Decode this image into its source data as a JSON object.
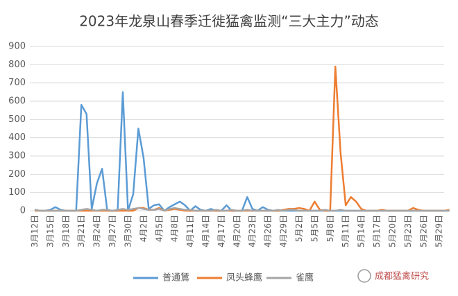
{
  "chart_data": {
    "type": "line",
    "title": "2023年龙泉山春季迁徙猛禽监测“三大主力”动态",
    "categories": [
      "3月12日",
      null,
      null,
      "3月15日",
      null,
      null,
      "3月18日",
      null,
      null,
      "3月21日",
      null,
      null,
      "3月24日",
      null,
      null,
      "3月27日",
      null,
      null,
      "3月30日",
      null,
      null,
      "4月2日",
      null,
      null,
      "4月5日",
      null,
      null,
      "4月8日",
      null,
      null,
      "4月11日",
      null,
      null,
      "4月14日",
      null,
      null,
      "4月17日",
      null,
      null,
      "4月20日",
      null,
      null,
      "4月23日",
      null,
      null,
      "4月26日",
      null,
      null,
      "4月29日",
      null,
      null,
      "5月2日",
      null,
      null,
      "5月5日",
      null,
      null,
      "5月8日",
      null,
      null,
      "5月11日",
      null,
      null,
      "5月14日",
      null,
      null,
      "5月17日",
      null,
      null,
      "5月20日",
      null,
      null,
      "5月23日",
      null,
      null,
      "5月26日",
      null,
      null,
      "5月29日",
      null,
      null
    ],
    "series": [
      {
        "name": "普通鵟",
        "color": "#5b9bd5",
        "values": [
          5,
          0,
          0,
          5,
          20,
          5,
          0,
          0,
          0,
          580,
          530,
          10,
          150,
          230,
          0,
          0,
          0,
          650,
          0,
          90,
          450,
          290,
          10,
          30,
          35,
          0,
          20,
          35,
          50,
          30,
          0,
          25,
          5,
          0,
          10,
          0,
          0,
          30,
          0,
          0,
          0,
          75,
          10,
          0,
          20,
          5,
          0,
          0,
          0,
          0,
          0,
          0,
          0,
          0,
          0,
          0,
          0,
          0,
          0,
          0,
          0,
          0,
          0,
          0,
          0,
          0,
          0,
          0,
          0,
          0,
          0,
          0,
          0,
          0,
          0,
          0,
          0,
          0,
          0,
          0,
          0
        ]
      },
      {
        "name": "凤头蜂鹰",
        "color": "#ed7d31",
        "values": [
          0,
          0,
          0,
          0,
          0,
          0,
          0,
          0,
          0,
          0,
          0,
          0,
          0,
          0,
          0,
          0,
          0,
          0,
          0,
          0,
          15,
          15,
          5,
          5,
          15,
          0,
          5,
          10,
          5,
          0,
          0,
          0,
          0,
          0,
          0,
          0,
          0,
          0,
          0,
          0,
          0,
          0,
          0,
          0,
          0,
          0,
          0,
          0,
          5,
          10,
          10,
          15,
          10,
          0,
          50,
          5,
          0,
          0,
          790,
          320,
          30,
          75,
          50,
          10,
          0,
          0,
          0,
          5,
          0,
          0,
          0,
          0,
          0,
          15,
          5,
          0,
          0,
          0,
          0,
          0,
          5
        ]
      },
      {
        "name": "雀鹰",
        "color": "#a5a5a5",
        "values": [
          5,
          0,
          0,
          0,
          0,
          0,
          0,
          0,
          0,
          5,
          10,
          5,
          0,
          5,
          5,
          0,
          5,
          10,
          5,
          10,
          15,
          10,
          5,
          5,
          10,
          0,
          10,
          15,
          10,
          5,
          5,
          0,
          0,
          0,
          0,
          5,
          0,
          0,
          5,
          0,
          0,
          5,
          0,
          0,
          0,
          0,
          0,
          5,
          0,
          5,
          5,
          0,
          0,
          0,
          0,
          0,
          5,
          0,
          0,
          5,
          0,
          0,
          0,
          0,
          0,
          0,
          0,
          0,
          0,
          0,
          0,
          0,
          0,
          0,
          0,
          0,
          0,
          0,
          0,
          0,
          0
        ]
      }
    ],
    "ylim": [
      0,
      900
    ],
    "yticks": [
      0,
      100,
      200,
      300,
      400,
      500,
      600,
      700,
      800,
      900
    ],
    "grid": true,
    "legend": "bottom"
  },
  "watermark": "成都猛禽研究"
}
